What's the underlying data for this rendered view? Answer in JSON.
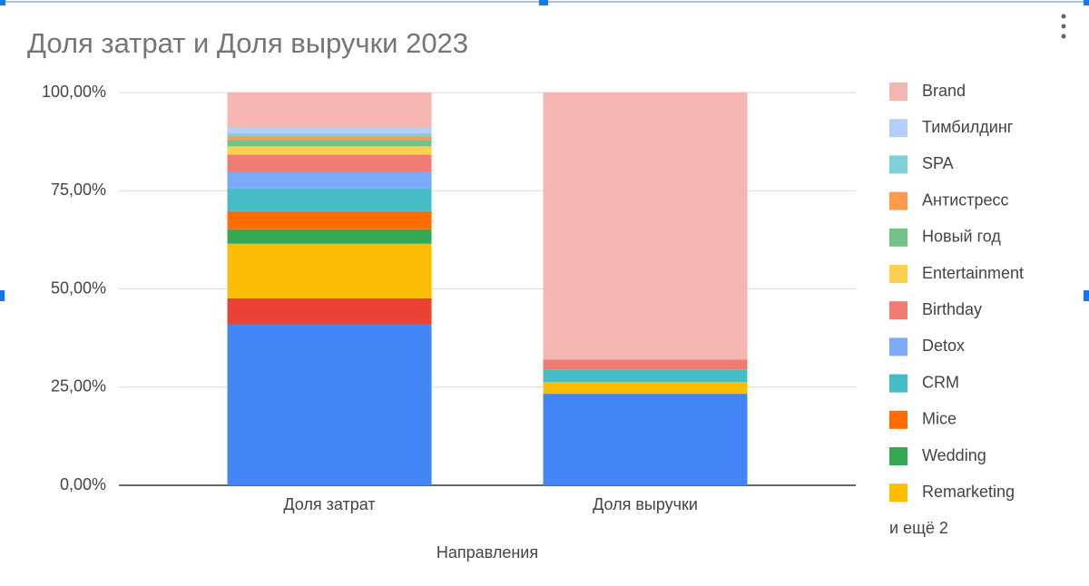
{
  "chart_data": {
    "type": "stacked_bar_100",
    "title": "Доля затрат и Доля выручки 2023",
    "x_label": "Направления",
    "categories": [
      "Доля затрат",
      "Доля выручки"
    ],
    "series": [
      {
        "color": "#4285f4",
        "values": [
          40.9,
          23.3
        ]
      },
      {
        "color": "#ea4335",
        "values": [
          6.7,
          0
        ]
      },
      {
        "name": "Remarketing",
        "color": "#fbbc04",
        "values": [
          13.9,
          3.0
        ]
      },
      {
        "name": "Wedding",
        "color": "#34a853",
        "values": [
          3.7,
          0
        ]
      },
      {
        "name": "Mice",
        "color": "#ff6d01",
        "values": [
          4.6,
          0
        ]
      },
      {
        "name": "CRM",
        "color": "#46bdc6",
        "values": [
          5.8,
          3.2
        ]
      },
      {
        "name": "Detox",
        "color": "#7baaf7",
        "values": [
          4.2,
          0
        ]
      },
      {
        "name": "Birthday",
        "color": "#f07b72",
        "values": [
          4.4,
          2.5
        ]
      },
      {
        "name": "Entertainment",
        "color": "#fcd04f",
        "values": [
          2.1,
          0
        ]
      },
      {
        "name": "Новый год",
        "color": "#71c287",
        "values": [
          1.6,
          0
        ]
      },
      {
        "name": "Антистресс",
        "color": "#ff994d",
        "values": [
          0.9,
          0
        ]
      },
      {
        "name": "SPA",
        "color": "#7ed1d7",
        "values": [
          0.9,
          0
        ]
      },
      {
        "name": "Тимбилдинг",
        "color": "#b3cefb",
        "values": [
          1.4,
          0
        ]
      },
      {
        "name": "Brand",
        "color": "#f5b5b0",
        "values": [
          8.9,
          68.0
        ]
      }
    ],
    "legend_more": "и ещё 2",
    "ylim": [
      0,
      100
    ],
    "yticks": [
      {
        "value": 0,
        "label": "0,00%"
      },
      {
        "value": 25,
        "label": "25,00%"
      },
      {
        "value": 50,
        "label": "50,00%"
      },
      {
        "value": 75,
        "label": "75,00%"
      },
      {
        "value": 100,
        "label": "100,00%"
      }
    ],
    "grid": true
  }
}
